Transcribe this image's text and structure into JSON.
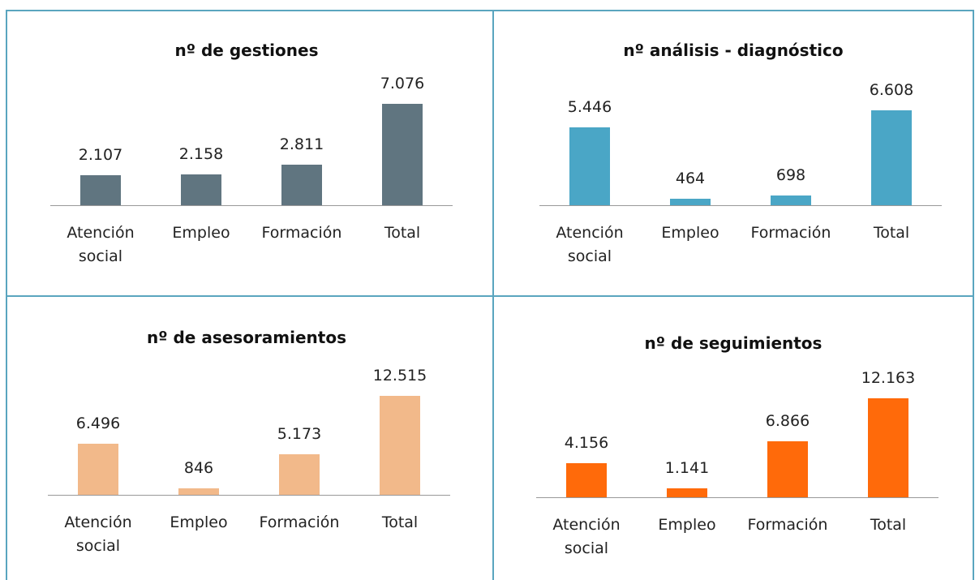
{
  "chart_data": [
    {
      "type": "bar",
      "title": "nº de gestiones",
      "categories": [
        "Atención social",
        "Empleo",
        "Formación",
        "Total"
      ],
      "values": [
        2107,
        2158,
        2811,
        7076
      ],
      "value_labels": [
        "2.107",
        "2.158",
        "2.811",
        "7.076"
      ],
      "color": "#607580"
    },
    {
      "type": "bar",
      "title": "nº análisis - diagnóstico",
      "categories": [
        "Atención social",
        "Empleo",
        "Formación",
        "Total"
      ],
      "values": [
        5446,
        464,
        698,
        6608
      ],
      "value_labels": [
        "5.446",
        "464",
        "698",
        "6.608"
      ],
      "color": "#4aa6c6"
    },
    {
      "type": "bar",
      "title": "nº de asesoramientos",
      "categories": [
        "Atención social",
        "Empleo",
        "Formación",
        "Total"
      ],
      "values": [
        6496,
        846,
        5173,
        12515
      ],
      "value_labels": [
        "6.496",
        "846",
        "5.173",
        "12.515"
      ],
      "color": "#f2b98a"
    },
    {
      "type": "bar",
      "title": "nº de seguimientos",
      "categories": [
        "Atención social",
        "Empleo",
        "Formación",
        "Total"
      ],
      "values": [
        4156,
        1141,
        6866,
        12163
      ],
      "value_labels": [
        "4.156",
        "1.141",
        "6.866",
        "12.163"
      ],
      "color": "#ff6a0a"
    }
  ]
}
